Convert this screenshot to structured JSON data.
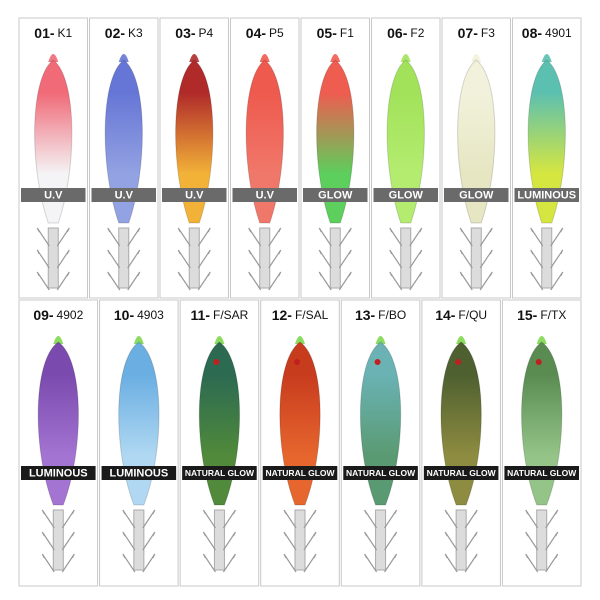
{
  "rows": [
    {
      "items": [
        {
          "number": "01-",
          "code": "K1",
          "band": "U.V"
        },
        {
          "number": "02-",
          "code": "K3",
          "band": "U.V"
        },
        {
          "number": "03-",
          "code": "P4",
          "band": "U.V"
        },
        {
          "number": "04-",
          "code": "P5",
          "band": "U.V"
        },
        {
          "number": "05-",
          "code": "F1",
          "band": "GLOW"
        },
        {
          "number": "06-",
          "code": "F2",
          "band": "GLOW"
        },
        {
          "number": "07-",
          "code": "F3",
          "band": "GLOW"
        },
        {
          "number": "08-",
          "code": "4901",
          "band": "LUMINOUS"
        }
      ]
    },
    {
      "items": [
        {
          "number": "09-",
          "code": "4902",
          "band": "LUMINOUS"
        },
        {
          "number": "10-",
          "code": "4903",
          "band": "LUMINOUS"
        },
        {
          "number": "11-",
          "code": "F/SAR",
          "band": "NATURAL GLOW"
        },
        {
          "number": "12-",
          "code": "F/SAL",
          "band": "NATURAL GLOW"
        },
        {
          "number": "13-",
          "code": "F/BO",
          "band": "NATURAL GLOW"
        },
        {
          "number": "14-",
          "code": "F/QU",
          "band": "NATURAL GLOW"
        },
        {
          "number": "15-",
          "code": "F/TX",
          "band": "NATURAL GLOW"
        }
      ]
    }
  ]
}
